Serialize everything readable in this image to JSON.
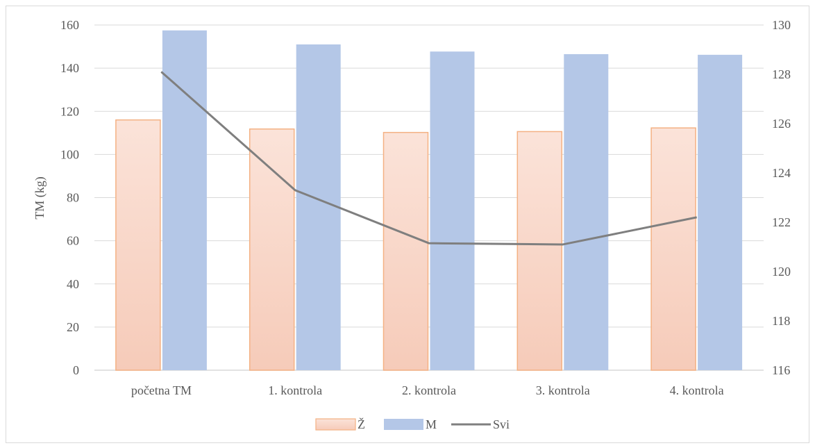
{
  "chart_data": {
    "type": "bar",
    "title": "",
    "xlabel": "",
    "ylabel": "TM (kg)",
    "y2label": "",
    "categories": [
      "početna TM",
      "1. kontrola",
      "2. kontrola",
      "3. kontrola",
      "4. kontrola"
    ],
    "series": [
      {
        "name": "Ž",
        "kind": "bar",
        "axis": "left",
        "color": "#f4b183",
        "values": [
          116,
          111.8,
          110.2,
          110.6,
          112.3
        ]
      },
      {
        "name": "M",
        "kind": "bar",
        "axis": "left",
        "color": "#b4c7e7",
        "values": [
          157.5,
          151,
          147.7,
          146.5,
          146.2
        ]
      },
      {
        "name": "Svi",
        "kind": "line",
        "axis": "right",
        "color": "#7f7f7f",
        "values": [
          128.1,
          123.3,
          121.15,
          121.1,
          122.2
        ]
      }
    ],
    "ylim": [
      0,
      160
    ],
    "y_ticks": [
      0,
      20,
      40,
      60,
      80,
      100,
      120,
      140,
      160
    ],
    "y2lim": [
      116,
      130
    ],
    "y2_ticks": [
      116,
      118,
      120,
      122,
      124,
      126,
      128,
      130
    ],
    "grid": true,
    "legend_position": "bottom"
  }
}
